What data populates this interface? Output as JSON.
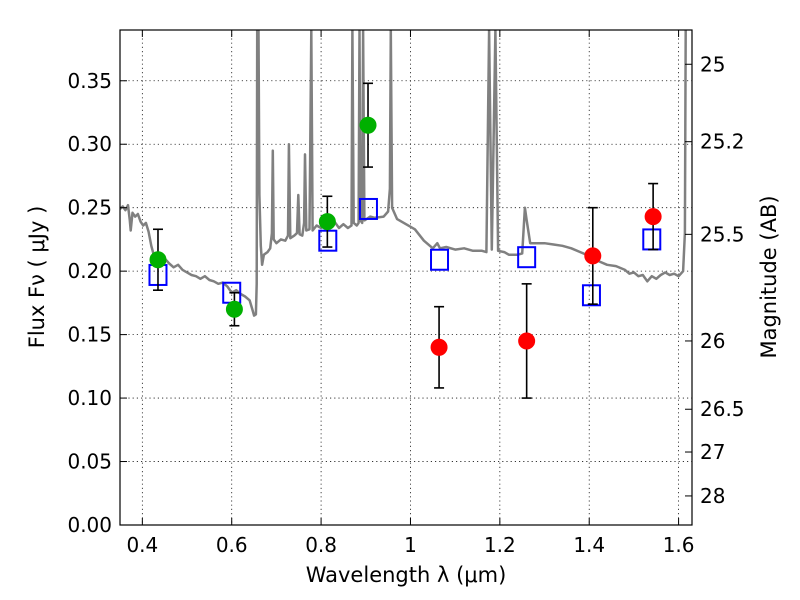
{
  "chart_data": {
    "type": "scatter",
    "xlabel": "Wavelength  λ (μm)",
    "ylabel": "Flux  Fν  ( μJy )",
    "y2label": "Magnitude (AB)",
    "xlim": [
      0.35,
      1.63
    ],
    "ylim": [
      0.0,
      0.39
    ],
    "grid": true,
    "x_ticks": [
      0.4,
      0.6,
      0.8,
      1.0,
      1.2,
      1.4,
      1.6
    ],
    "x_tick_labels": [
      "0.4",
      "0.6",
      "0.8",
      "1",
      "1.2",
      "1.4",
      "1.6"
    ],
    "y_ticks": [
      0.0,
      0.05,
      0.1,
      0.15,
      0.2,
      0.25,
      0.3,
      0.35
    ],
    "y_tick_labels": [
      "0.00",
      "0.05",
      "0.10",
      "0.15",
      "0.20",
      "0.25",
      "0.30",
      "0.35"
    ],
    "y2_ticks": [
      {
        "flux": 0.363,
        "label": "25"
      },
      {
        "flux": 0.302,
        "label": "25.2"
      },
      {
        "flux": 0.229,
        "label": "25.5"
      },
      {
        "flux": 0.145,
        "label": "26"
      },
      {
        "flux": 0.0912,
        "label": "26.5"
      },
      {
        "flux": 0.0575,
        "label": "27"
      },
      {
        "flux": 0.0229,
        "label": "28"
      }
    ],
    "series": [
      {
        "kind": "points",
        "color": "#00b000",
        "points": [
          {
            "x": 0.435,
            "y": 0.209,
            "err": 0.024
          },
          {
            "x": 0.606,
            "y": 0.17,
            "err": 0.013
          },
          {
            "x": 0.814,
            "y": 0.239,
            "err": 0.02
          },
          {
            "x": 0.905,
            "y": 0.315,
            "err": 0.033
          }
        ]
      },
      {
        "kind": "points",
        "color": "#ff0000",
        "points": [
          {
            "x": 1.064,
            "y": 0.14,
            "err": 0.032
          },
          {
            "x": 1.26,
            "y": 0.145,
            "err": 0.045
          },
          {
            "x": 1.408,
            "y": 0.212,
            "err": 0.038
          },
          {
            "x": 1.543,
            "y": 0.243,
            "err": 0.026
          }
        ]
      },
      {
        "kind": "boxes",
        "color": "#0000ff",
        "points": [
          {
            "x": 0.435,
            "y": 0.197
          },
          {
            "x": 0.6,
            "y": 0.183
          },
          {
            "x": 0.815,
            "y": 0.224
          },
          {
            "x": 0.906,
            "y": 0.249
          },
          {
            "x": 1.065,
            "y": 0.209
          },
          {
            "x": 1.26,
            "y": 0.211
          },
          {
            "x": 1.405,
            "y": 0.181
          },
          {
            "x": 1.54,
            "y": 0.225
          }
        ]
      },
      {
        "kind": "line",
        "color": "#808080",
        "points": [
          [
            0.35,
            0.249
          ],
          [
            0.356,
            0.251
          ],
          [
            0.362,
            0.248
          ],
          [
            0.368,
            0.252
          ],
          [
            0.372,
            0.24
          ],
          [
            0.374,
            0.232
          ],
          [
            0.378,
            0.246
          ],
          [
            0.384,
            0.243
          ],
          [
            0.39,
            0.245
          ],
          [
            0.396,
            0.239
          ],
          [
            0.402,
            0.236
          ],
          [
            0.408,
            0.238
          ],
          [
            0.414,
            0.231
          ],
          [
            0.42,
            0.22
          ],
          [
            0.426,
            0.212
          ],
          [
            0.432,
            0.214
          ],
          [
            0.44,
            0.207
          ],
          [
            0.45,
            0.21
          ],
          [
            0.46,
            0.206
          ],
          [
            0.47,
            0.203
          ],
          [
            0.48,
            0.205
          ],
          [
            0.49,
            0.201
          ],
          [
            0.5,
            0.199
          ],
          [
            0.51,
            0.197
          ],
          [
            0.52,
            0.196
          ],
          [
            0.53,
            0.194
          ],
          [
            0.54,
            0.196
          ],
          [
            0.55,
            0.193
          ],
          [
            0.56,
            0.192
          ],
          [
            0.57,
            0.19
          ],
          [
            0.58,
            0.191
          ],
          [
            0.59,
            0.188
          ],
          [
            0.6,
            0.183
          ],
          [
            0.61,
            0.185
          ],
          [
            0.62,
            0.182
          ],
          [
            0.63,
            0.18
          ],
          [
            0.64,
            0.177
          ],
          [
            0.646,
            0.17
          ],
          [
            0.65,
            0.165
          ],
          [
            0.654,
            0.166
          ],
          [
            0.656,
            0.19
          ],
          [
            0.657,
            0.39
          ],
          [
            0.66,
            0.39
          ],
          [
            0.662,
            0.26
          ],
          [
            0.665,
            0.22
          ],
          [
            0.668,
            0.205
          ],
          [
            0.672,
            0.213
          ],
          [
            0.68,
            0.215
          ],
          [
            0.686,
            0.218
          ],
          [
            0.69,
            0.23
          ],
          [
            0.692,
            0.295
          ],
          [
            0.694,
            0.225
          ],
          [
            0.7,
            0.222
          ],
          [
            0.71,
            0.225
          ],
          [
            0.72,
            0.224
          ],
          [
            0.726,
            0.228
          ],
          [
            0.728,
            0.3
          ],
          [
            0.731,
            0.226
          ],
          [
            0.74,
            0.228
          ],
          [
            0.746,
            0.23
          ],
          [
            0.749,
            0.26
          ],
          [
            0.752,
            0.229
          ],
          [
            0.758,
            0.228
          ],
          [
            0.762,
            0.238
          ],
          [
            0.764,
            0.292
          ],
          [
            0.767,
            0.232
          ],
          [
            0.774,
            0.233
          ],
          [
            0.778,
            0.39
          ],
          [
            0.781,
            0.232
          ],
          [
            0.79,
            0.236
          ],
          [
            0.8,
            0.234
          ],
          [
            0.81,
            0.237
          ],
          [
            0.82,
            0.237
          ],
          [
            0.83,
            0.239
          ],
          [
            0.84,
            0.234
          ],
          [
            0.85,
            0.237
          ],
          [
            0.86,
            0.234
          ],
          [
            0.868,
            0.236
          ],
          [
            0.87,
            0.39
          ],
          [
            0.873,
            0.238
          ],
          [
            0.88,
            0.236
          ],
          [
            0.884,
            0.238
          ],
          [
            0.886,
            0.39
          ],
          [
            0.888,
            0.24
          ],
          [
            0.892,
            0.238
          ],
          [
            0.894,
            0.39
          ],
          [
            0.897,
            0.24
          ],
          [
            0.91,
            0.243
          ],
          [
            0.92,
            0.242
          ],
          [
            0.94,
            0.243
          ],
          [
            0.95,
            0.247
          ],
          [
            0.954,
            0.265
          ],
          [
            0.956,
            0.39
          ],
          [
            0.959,
            0.25
          ],
          [
            0.97,
            0.241
          ],
          [
            0.99,
            0.237
          ],
          [
            1.01,
            0.233
          ],
          [
            1.03,
            0.224
          ],
          [
            1.05,
            0.218
          ],
          [
            1.06,
            0.222
          ],
          [
            1.066,
            0.218
          ],
          [
            1.08,
            0.219
          ],
          [
            1.1,
            0.217
          ],
          [
            1.12,
            0.218
          ],
          [
            1.14,
            0.216
          ],
          [
            1.16,
            0.216
          ],
          [
            1.17,
            0.215
          ],
          [
            1.176,
            0.39
          ],
          [
            1.182,
            0.217
          ],
          [
            1.19,
            0.39
          ],
          [
            1.196,
            0.216
          ],
          [
            1.21,
            0.215
          ],
          [
            1.22,
            0.213
          ],
          [
            1.24,
            0.213
          ],
          [
            1.25,
            0.214
          ],
          [
            1.256,
            0.25
          ],
          [
            1.26,
            0.24
          ],
          [
            1.268,
            0.222
          ],
          [
            1.28,
            0.222
          ],
          [
            1.3,
            0.222
          ],
          [
            1.32,
            0.221
          ],
          [
            1.34,
            0.22
          ],
          [
            1.36,
            0.218
          ],
          [
            1.38,
            0.215
          ],
          [
            1.4,
            0.212
          ],
          [
            1.42,
            0.208
          ],
          [
            1.44,
            0.205
          ],
          [
            1.46,
            0.204
          ],
          [
            1.48,
            0.201
          ],
          [
            1.49,
            0.198
          ],
          [
            1.5,
            0.199
          ],
          [
            1.51,
            0.196
          ],
          [
            1.52,
            0.197
          ],
          [
            1.53,
            0.192
          ],
          [
            1.54,
            0.196
          ],
          [
            1.55,
            0.194
          ],
          [
            1.56,
            0.197
          ],
          [
            1.57,
            0.199
          ],
          [
            1.58,
            0.197
          ],
          [
            1.59,
            0.198
          ],
          [
            1.6,
            0.196
          ],
          [
            1.61,
            0.2
          ],
          [
            1.614,
            0.23
          ],
          [
            1.616,
            0.39
          ]
        ]
      }
    ]
  }
}
